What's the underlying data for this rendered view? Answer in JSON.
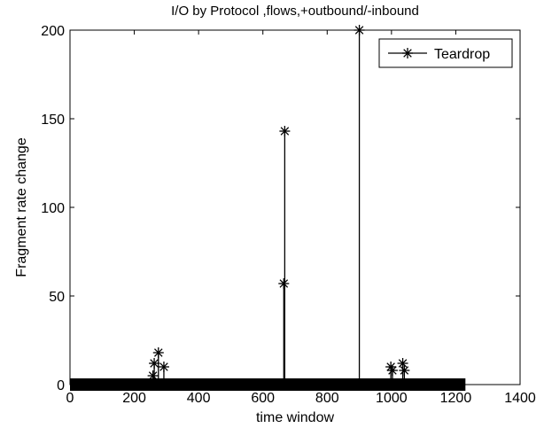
{
  "chart_data": {
    "type": "line",
    "title": "I/O by Protocol ,flows,+outbound/-inbound",
    "xlabel": "time window",
    "ylabel": "Fragment rate change",
    "xlim": [
      0,
      1400
    ],
    "ylim": [
      0,
      200
    ],
    "xticks": [
      "0",
      "200",
      "400",
      "600",
      "800",
      "1000",
      "1200",
      "1400"
    ],
    "yticks": [
      "0",
      "50",
      "100",
      "150",
      "200"
    ],
    "grid": false,
    "legend": {
      "position": "top-right",
      "entries": [
        "Teardrop"
      ]
    },
    "colors": {
      "series": "#000000"
    },
    "series": [
      {
        "name": "Teardrop",
        "marker": "asterisk",
        "baseline": {
          "x_start": 0,
          "x_end": 1230,
          "y": 0
        },
        "spikes": [
          {
            "x": 258,
            "y": 5
          },
          {
            "x": 262,
            "y": 12
          },
          {
            "x": 275,
            "y": 18
          },
          {
            "x": 292,
            "y": 10
          },
          {
            "x": 665,
            "y": 57
          },
          {
            "x": 668,
            "y": 143
          },
          {
            "x": 900,
            "y": 200
          },
          {
            "x": 998,
            "y": 10
          },
          {
            "x": 1003,
            "y": 8
          },
          {
            "x": 1035,
            "y": 12
          },
          {
            "x": 1040,
            "y": 8
          }
        ]
      }
    ]
  }
}
